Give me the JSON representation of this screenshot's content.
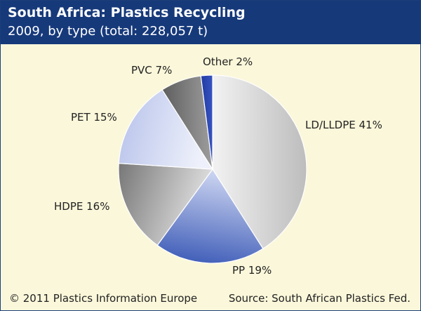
{
  "header": {
    "title": "South Africa: Plastics Recycling",
    "subtitle": "2009, by type (total: 228,057 t)"
  },
  "chart_data": {
    "type": "pie",
    "categories": [
      "LD/LLDPE",
      "PP",
      "HDPE",
      "PET",
      "PVC",
      "Other"
    ],
    "values": [
      41,
      19,
      16,
      15,
      7,
      2
    ],
    "unit": "%",
    "labels": [
      "LD/LLDPE 41%",
      "PP 19%",
      "HDPE 16%",
      "PET 15%",
      "PVC 7%",
      "Other 2%"
    ],
    "colors": [
      "#d4d4d4",
      "#5a76cc",
      "#8c8c8c",
      "#c3cbeb",
      "#6e6e6e",
      "#2741a8"
    ]
  },
  "footer": {
    "copyright": "© 2011 Plastics Information Europe",
    "source": "Source: South African Plastics Fed."
  }
}
